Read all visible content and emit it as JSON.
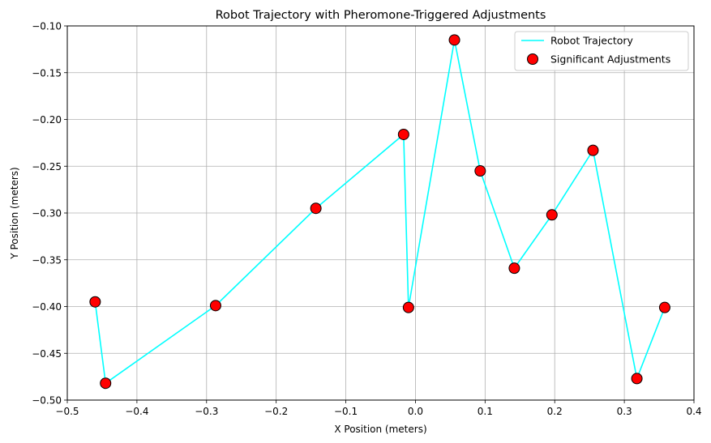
{
  "chart_data": {
    "type": "line",
    "title": "Robot Trajectory with Pheromone-Triggered Adjustments",
    "xlabel": "X Position (meters)",
    "ylabel": "Y Position (meters)",
    "xlim": [
      -0.5,
      0.4
    ],
    "ylim": [
      -0.5,
      -0.1
    ],
    "x_ticks": [
      -0.5,
      -0.4,
      -0.3,
      -0.2,
      -0.1,
      0.0,
      0.1,
      0.2,
      0.3,
      0.4
    ],
    "y_ticks": [
      -0.5,
      -0.45,
      -0.4,
      -0.35,
      -0.3,
      -0.25,
      -0.2,
      -0.15,
      -0.1
    ],
    "x_tick_labels": [
      "−0.5",
      "−0.4",
      "−0.3",
      "−0.2",
      "−0.1",
      "0.0",
      "0.1",
      "0.2",
      "0.3",
      "0.4"
    ],
    "y_tick_labels": [
      "−0.50",
      "−0.45",
      "−0.40",
      "−0.35",
      "−0.30",
      "−0.25",
      "−0.20",
      "−0.15",
      "−0.10"
    ],
    "grid": true,
    "legend_position": "top-right",
    "series": [
      {
        "name": "Robot Trajectory",
        "kind": "line",
        "color": "#00ffff",
        "points": [
          [
            -0.46,
            -0.395
          ],
          [
            -0.445,
            -0.482
          ],
          [
            -0.287,
            -0.399
          ],
          [
            -0.143,
            -0.295
          ],
          [
            -0.017,
            -0.216
          ],
          [
            -0.01,
            -0.401
          ],
          [
            0.056,
            -0.115
          ],
          [
            0.093,
            -0.255
          ],
          [
            0.142,
            -0.359
          ],
          [
            0.196,
            -0.302
          ],
          [
            0.255,
            -0.233
          ],
          [
            0.318,
            -0.477
          ],
          [
            0.358,
            -0.401
          ]
        ]
      },
      {
        "name": "Significant Adjustments",
        "kind": "scatter",
        "color": "#ff0000",
        "edge_color": "#000000",
        "points": [
          [
            -0.46,
            -0.395
          ],
          [
            -0.445,
            -0.482
          ],
          [
            -0.287,
            -0.399
          ],
          [
            -0.143,
            -0.295
          ],
          [
            -0.017,
            -0.216
          ],
          [
            -0.01,
            -0.401
          ],
          [
            0.056,
            -0.115
          ],
          [
            0.093,
            -0.255
          ],
          [
            0.142,
            -0.359
          ],
          [
            0.196,
            -0.302
          ],
          [
            0.255,
            -0.233
          ],
          [
            0.318,
            -0.477
          ],
          [
            0.358,
            -0.401
          ]
        ]
      }
    ]
  }
}
